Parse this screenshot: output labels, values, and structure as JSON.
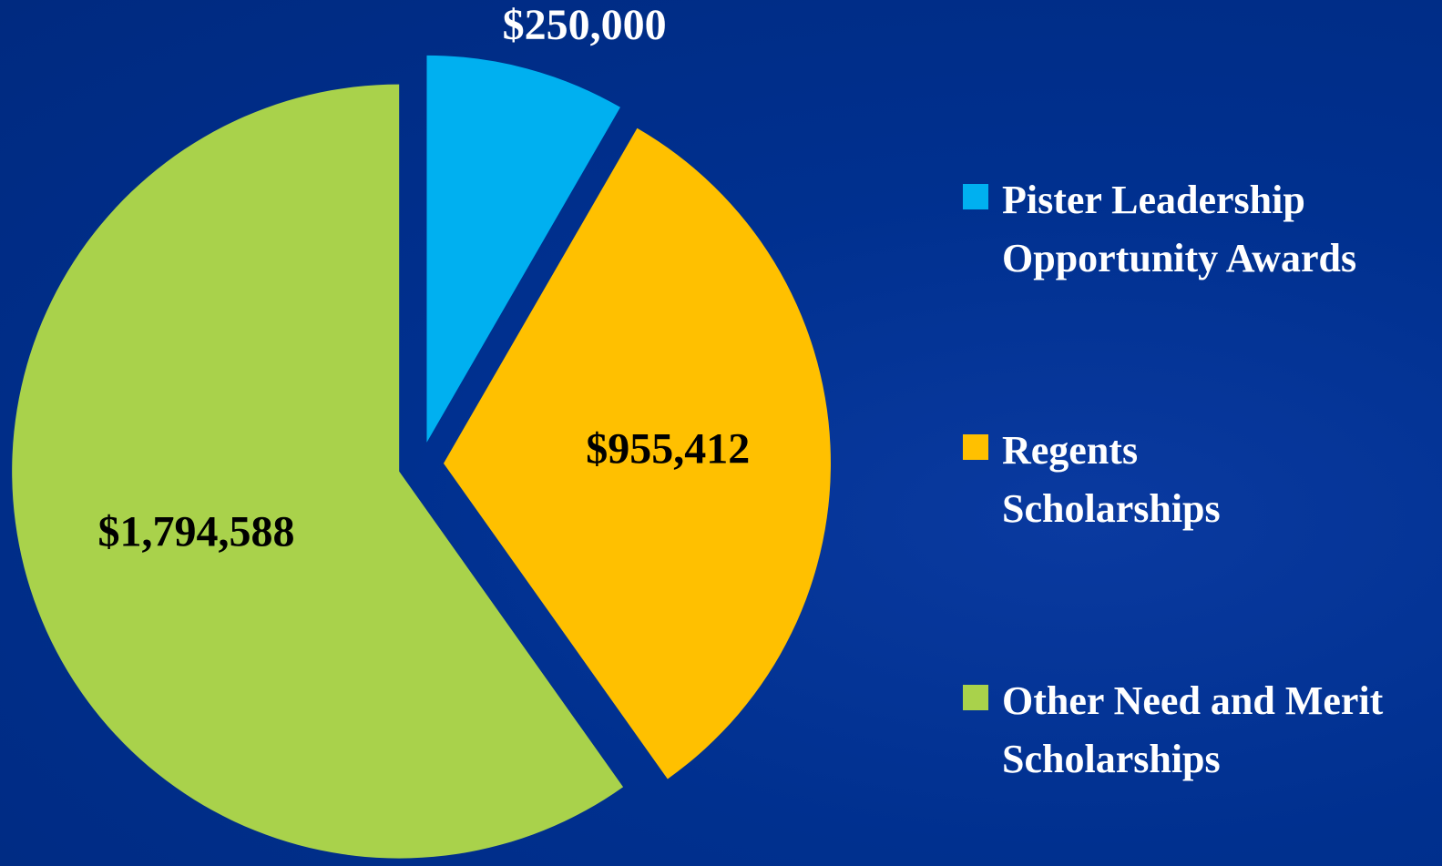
{
  "chart_data": {
    "type": "pie",
    "categories": [
      "Pister Leadership Opportunity Awards",
      "Regents Scholarships",
      "Other Need and Merit Scholarships"
    ],
    "values": [
      250000,
      955412,
      1794588
    ],
    "value_labels": [
      "$250,000",
      "$955,412",
      "$1,794,588"
    ],
    "colors": [
      "#00b0f0",
      "#ffc000",
      "#a9d24b"
    ],
    "legend": "right"
  }
}
